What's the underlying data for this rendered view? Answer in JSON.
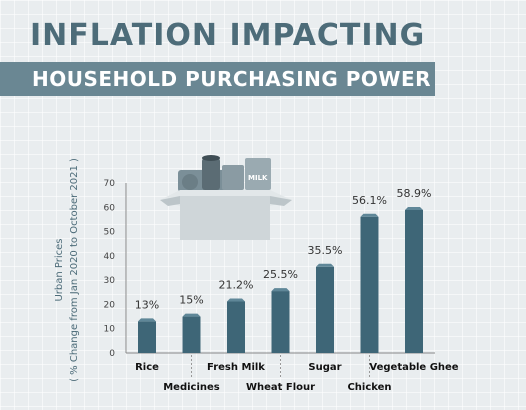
{
  "title": "INFLATION IMPACTING",
  "subtitle": "HOUSEHOLD PURCHASING POWER",
  "chart_data": {
    "type": "bar",
    "categories": [
      "Rice",
      "Medicines",
      "Fresh Milk",
      "Wheat Flour",
      "Sugar",
      "Chicken",
      "Vegetable Ghee"
    ],
    "values": [
      13,
      15,
      21.2,
      25.5,
      35.5,
      56.1,
      58.9
    ],
    "data_labels": [
      "13%",
      "15%",
      "21.2%",
      "25.5%",
      "35.5%",
      "56.1%",
      "58.9%"
    ],
    "ylabel": "Urban Prices",
    "ylabel_sub": "( % Change from Jan 2020 to October 2021 )",
    "ylim": [
      0,
      70
    ],
    "yticks": [
      0,
      10,
      20,
      30,
      40,
      50,
      60,
      70
    ],
    "bar_color": "#3e6677",
    "grid": false
  },
  "illustration": {
    "box_color": "#cfd6d9",
    "milk_label": "MILK",
    "icon": "grocery-box-icon"
  }
}
